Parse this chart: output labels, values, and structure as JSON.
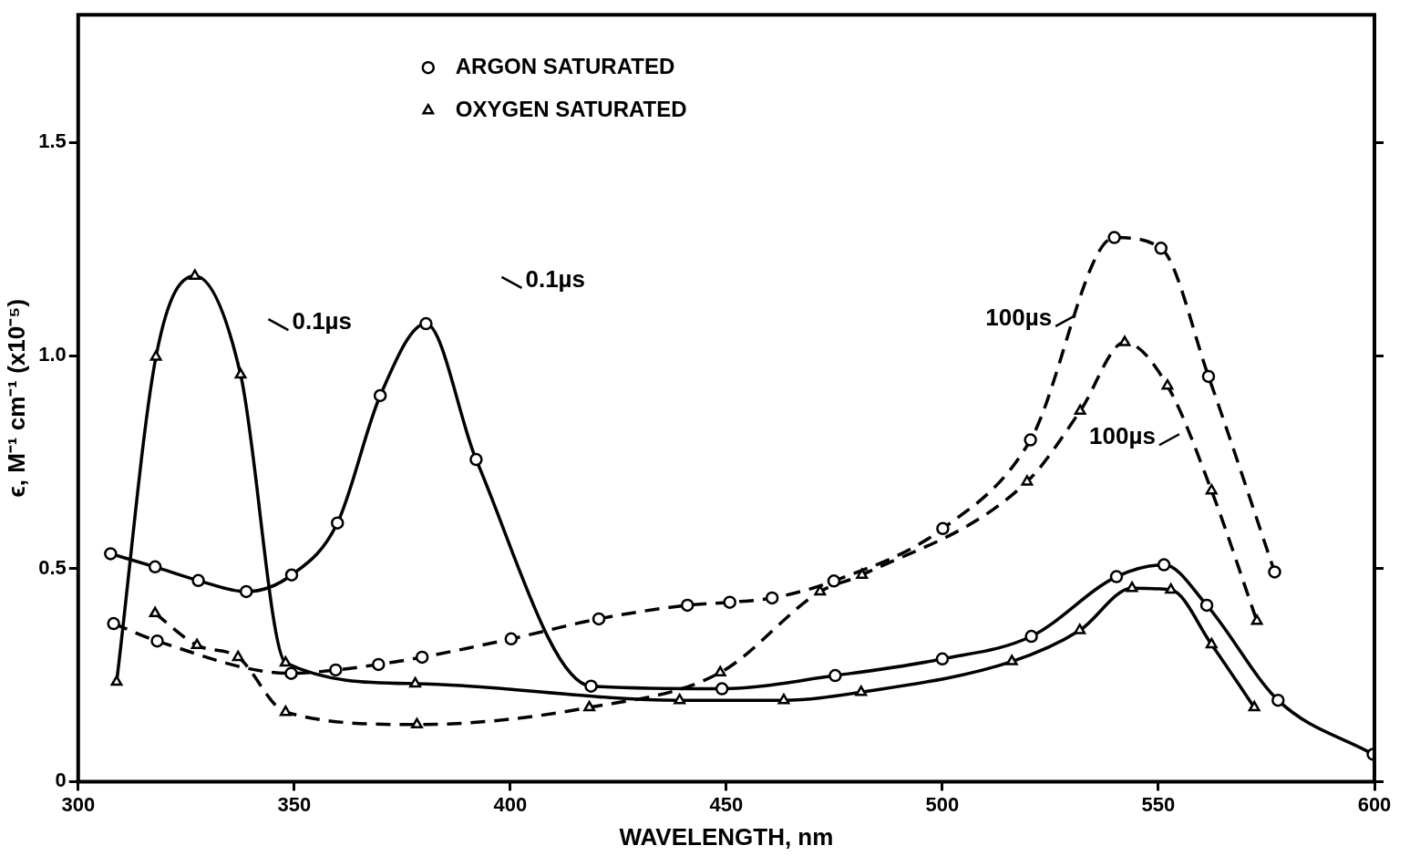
{
  "chart_data": {
    "type": "line",
    "xlabel": "WAVELENGTH, nm",
    "ylabel": "ϵ, M⁻¹ cm⁻¹ (x10⁻⁵)",
    "xlim": [
      300,
      600
    ],
    "xticks": [
      300,
      350,
      400,
      450,
      500,
      550,
      600
    ],
    "ylim": [
      0,
      1.8
    ],
    "yticks": [
      0,
      {
        "value": 0.5,
        "label": "0.5"
      },
      {
        "value": 1,
        "label": "1.0"
      },
      {
        "value": 1.5,
        "label": "1.5"
      }
    ],
    "grid": false,
    "legend": "top",
    "series": [
      {
        "name": "ARGON SATURATED",
        "color": "#000000",
        "marker": "circle",
        "line_style": "solid",
        "x": [
          307.5,
          317.8,
          327.8,
          338.9,
          349.4,
          360,
          369.9,
          380.5,
          392.1,
          418.7,
          449,
          475.2,
          500,
          520.6,
          540.3,
          551.3,
          561.2,
          577.7,
          599.7
        ],
        "values": [
          0.535,
          0.504,
          0.472,
          0.446,
          0.485,
          0.607,
          0.906,
          1.075,
          0.756,
          0.224,
          0.218,
          0.249,
          0.288,
          0.341,
          0.481,
          0.509,
          0.414,
          0.191,
          0.064
        ]
      },
      {
        "name": "OXYGEN SATURATED",
        "color": "#000000",
        "marker": "triangle",
        "line_style": "solid",
        "x": [
          308.9,
          318,
          327,
          337.6,
          348,
          378,
          439.2,
          463.3,
          481.2,
          516.1,
          531.8,
          543.9,
          552.9,
          562.3,
          572.2
        ],
        "values": [
          0.234,
          0.997,
          1.187,
          0.955,
          0.279,
          0.23,
          0.191,
          0.191,
          0.21,
          0.282,
          0.355,
          0.454,
          0.45,
          0.322,
          0.174
        ]
      },
      {
        "color": "#000000",
        "marker": "circle",
        "line_style": "dashed",
        "x": [
          308.2,
          318.3,
          349.3,
          359.6,
          369.5,
          379.6,
          400.2,
          420.5,
          441,
          450.8,
          460.6,
          474.9,
          500.1,
          520.4,
          539.8,
          550.6,
          561.6,
          576.9
        ],
        "values": [
          0.371,
          0.33,
          0.254,
          0.262,
          0.275,
          0.292,
          0.335,
          0.382,
          0.414,
          0.421,
          0.431,
          0.471,
          0.594,
          0.802,
          1.277,
          1.252,
          0.951,
          0.492
        ]
      },
      {
        "color": "#000000",
        "marker": "triangle",
        "line_style": "dashed",
        "x": [
          317.8,
          327.5,
          337,
          348,
          378.4,
          418.3,
          448.6,
          471.7,
          481.4,
          519.6,
          531.9,
          542.2,
          552.1,
          562.3,
          572.8
        ],
        "values": [
          0.395,
          0.32,
          0.292,
          0.163,
          0.134,
          0.174,
          0.256,
          0.446,
          0.485,
          0.704,
          0.87,
          1.031,
          0.929,
          0.683,
          0.377
        ]
      }
    ],
    "annotations": [
      "0.1µs",
      "0.1µs",
      "100µs",
      "100µs"
    ]
  }
}
